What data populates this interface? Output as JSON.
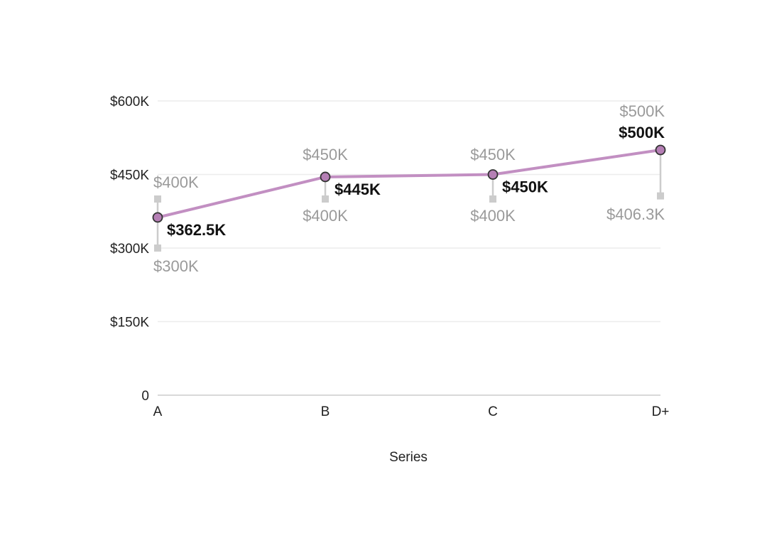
{
  "chart_data": {
    "type": "line",
    "categories": [
      "A",
      "B",
      "C",
      "D+"
    ],
    "series": [
      {
        "values": [
          362.5,
          445,
          450,
          500
        ],
        "value_labels": [
          "$362.5K",
          "$445K",
          "$450K",
          "$500K"
        ],
        "color": "#c28fc2",
        "marker_fill": "#b57fb5",
        "marker_stroke": "#333333"
      }
    ],
    "ranges": [
      {
        "low": 300,
        "high": 400,
        "low_label": "$300K",
        "high_label": "$400K"
      },
      {
        "low": 400,
        "high": 450,
        "low_label": "$400K",
        "high_label": "$450K"
      },
      {
        "low": 400,
        "high": 450,
        "low_label": "$400K",
        "high_label": "$450K"
      },
      {
        "low": 406.3,
        "high": 500,
        "low_label": "$406.3K",
        "high_label": "$500K"
      }
    ],
    "range_color": "#cccccc",
    "yticks": [
      0,
      150,
      300,
      450,
      600
    ],
    "ytick_labels": [
      "0",
      "$150K",
      "$300K",
      "$450K",
      "$600K"
    ],
    "ylim": [
      0,
      600
    ],
    "xlabel": "Series",
    "ylabel": "",
    "grid": true
  }
}
